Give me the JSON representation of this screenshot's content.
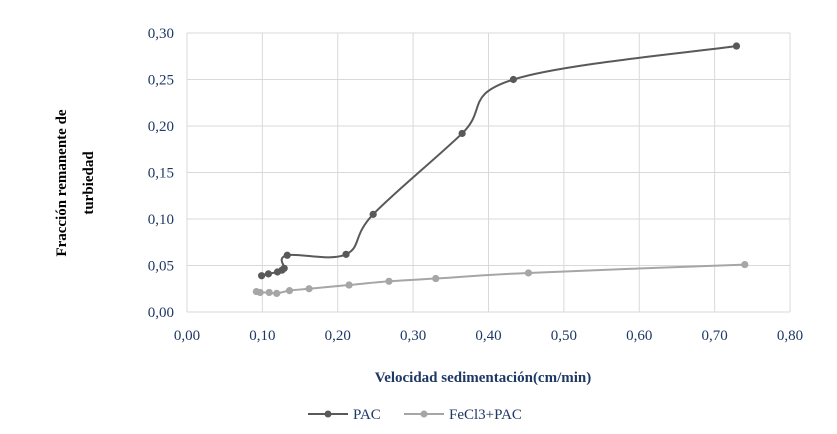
{
  "chart_data": {
    "type": "line",
    "title": "",
    "xlabel": "Velocidad sedimentación(cm/min)",
    "ylabel_lines": [
      "Fracción remanente de",
      "turbiedad"
    ],
    "xlim": [
      0,
      0.8
    ],
    "ylim": [
      0,
      0.3
    ],
    "xticks": [
      0,
      0.1,
      0.2,
      0.3,
      0.4,
      0.5,
      0.6,
      0.7,
      0.8
    ],
    "yticks": [
      0,
      0.05,
      0.1,
      0.15,
      0.2,
      0.25,
      0.3
    ],
    "xtick_labels": [
      "0,00",
      "0,10",
      "0,20",
      "0,30",
      "0,40",
      "0,50",
      "0,60",
      "0,70",
      "0,80"
    ],
    "ytick_labels": [
      "0,00",
      "0,05",
      "0,10",
      "0,15",
      "0,20",
      "0,25",
      "0,30"
    ],
    "grid": "both",
    "legend_position": "bottom",
    "series": [
      {
        "name": "PAC",
        "color": "#595959",
        "points": [
          [
            0.099,
            0.039
          ],
          [
            0.108,
            0.041
          ],
          [
            0.12,
            0.043
          ],
          [
            0.126,
            0.045
          ],
          [
            0.129,
            0.047
          ],
          [
            0.133,
            0.061
          ],
          [
            0.211,
            0.062
          ],
          [
            0.247,
            0.105
          ],
          [
            0.365,
            0.192
          ],
          [
            0.433,
            0.25
          ],
          [
            0.729,
            0.286
          ]
        ]
      },
      {
        "name": "FeCl3+PAC",
        "color": "#a6a6a6",
        "points": [
          [
            0.092,
            0.022
          ],
          [
            0.097,
            0.021
          ],
          [
            0.109,
            0.021
          ],
          [
            0.119,
            0.02
          ],
          [
            0.136,
            0.023
          ],
          [
            0.162,
            0.025
          ],
          [
            0.215,
            0.029
          ],
          [
            0.268,
            0.033
          ],
          [
            0.33,
            0.036
          ],
          [
            0.453,
            0.042
          ],
          [
            0.74,
            0.051
          ]
        ]
      }
    ]
  }
}
